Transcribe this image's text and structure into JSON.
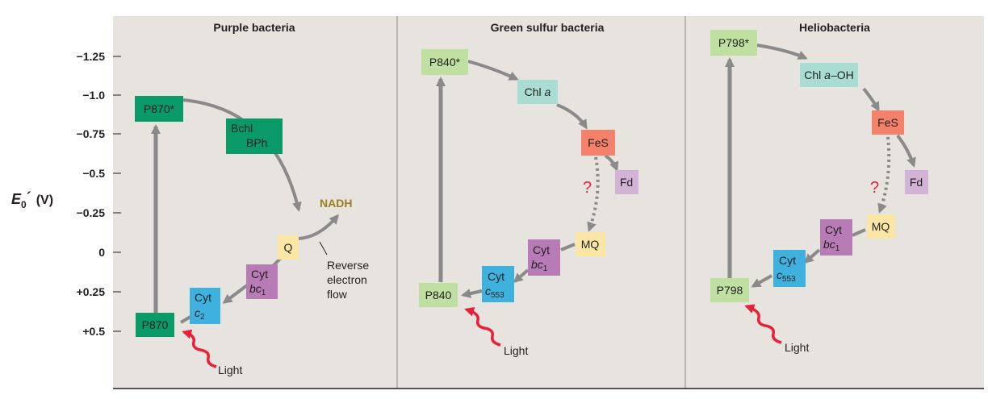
{
  "axis": {
    "label_main": "E",
    "label_sub": "0",
    "label_prime": "´",
    "label_unit": "(V)",
    "ticks": [
      "−1.25",
      "−1.0",
      "−0.75",
      "−0.5",
      "−0.25",
      "0",
      "+0.25",
      "+0.5"
    ]
  },
  "panels": [
    {
      "title": "Purple bacteria",
      "boxes": {
        "p870_star": "P870*",
        "bchl": "Bchl",
        "bph": "BPh",
        "q": "Q",
        "cyt_bc1_top": "Cyt",
        "cyt_bc1_bot": "bc",
        "cyt_bc1_sub": "1",
        "cyt_c2_top": "Cyt",
        "cyt_c2_bot": "c",
        "cyt_c2_sub": "2",
        "p870": "P870"
      },
      "nadh": "NADH",
      "reverse_flow": [
        "Reverse",
        "electron",
        "flow"
      ],
      "light": "Light"
    },
    {
      "title": "Green sulfur bacteria",
      "boxes": {
        "p840_star": "P840*",
        "chl_a_1": "Chl ",
        "chl_a_2": "a",
        "fes": "FeS",
        "fd": "Fd",
        "question": "?",
        "mq": "MQ",
        "cyt_bc1_top": "Cyt",
        "cyt_bc1_bot": "bc",
        "cyt_bc1_sub": "1",
        "cyt_c553_top": "Cyt",
        "cyt_c553_bot": "c",
        "cyt_c553_sub": "553",
        "p840": "P840"
      },
      "light": "Light"
    },
    {
      "title": "Heliobacteria",
      "boxes": {
        "p798_star": "P798*",
        "chl_aoh_1": "Chl ",
        "chl_aoh_2": "a",
        "chl_aoh_3": "–OH",
        "fes": "FeS",
        "fd": "Fd",
        "question": "?",
        "mq": "MQ",
        "cyt_bc1_top": "Cyt",
        "cyt_bc1_bot": "bc",
        "cyt_bc1_sub": "1",
        "cyt_c553_top": "Cyt",
        "cyt_c553_bot": "c",
        "cyt_c553_sub": "553",
        "p798": "P798"
      },
      "light": "Light"
    }
  ],
  "colors": {
    "panel_bg": "#e7e3de",
    "arrow": "#8a8a8a",
    "green_dark": "#0a9a6a",
    "green_light": "#bfe0a0",
    "teal_light": "#a9ddd3",
    "orange": "#f4826a",
    "lilac": "#d2b3d6",
    "purple": "#b77bb6",
    "blue": "#3fb1df",
    "yellow": "#fbe6a6",
    "nadh": "#9b7f1e",
    "light_arrow": "#e8213a",
    "question": "#e8213a"
  }
}
